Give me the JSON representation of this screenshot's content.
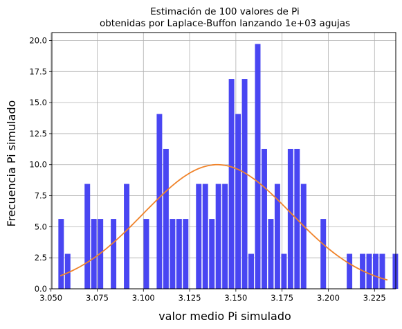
{
  "chart_data": {
    "type": "bar",
    "title_lines": [
      "Estimación de 100 valores de Pi",
      "obtenidas por Laplace-Buffon lanzando 1e+03 agujas"
    ],
    "xlabel": "valor medio Pi simulado",
    "ylabel": "Frecuencia Pi simulado",
    "xlim": [
      3.0505,
      3.2365
    ],
    "ylim": [
      0.0,
      20.64
    ],
    "x_ticks": [
      "3.050",
      "3.075",
      "3.100",
      "3.125",
      "3.150",
      "3.175",
      "3.200",
      "3.225"
    ],
    "y_ticks": [
      "0.0",
      "2.5",
      "5.0",
      "7.5",
      "10.0",
      "12.5",
      "15.0",
      "17.5",
      "20.0"
    ],
    "grid": true,
    "bin_start": 3.054,
    "bin_width": 0.003545,
    "bar_color": "#4340f2",
    "bars": [
      5.63,
      2.82,
      0,
      0,
      8.45,
      5.63,
      5.63,
      0,
      5.63,
      0,
      8.45,
      0,
      0,
      5.63,
      0,
      14.08,
      11.27,
      5.63,
      5.63,
      5.63,
      0,
      8.45,
      8.45,
      5.63,
      8.45,
      8.45,
      16.9,
      14.08,
      16.9,
      2.82,
      19.72,
      11.27,
      5.63,
      8.45,
      2.82,
      11.27,
      11.27,
      8.45,
      0,
      0,
      5.63,
      0,
      0,
      0,
      2.82,
      0,
      2.82,
      2.82,
      2.82,
      2.82,
      0,
      2.82
    ],
    "curve": {
      "color": "#f0832a",
      "mean": 3.14,
      "std": 0.04,
      "peak": 10.0,
      "x_range": [
        3.055,
        3.232
      ]
    }
  }
}
